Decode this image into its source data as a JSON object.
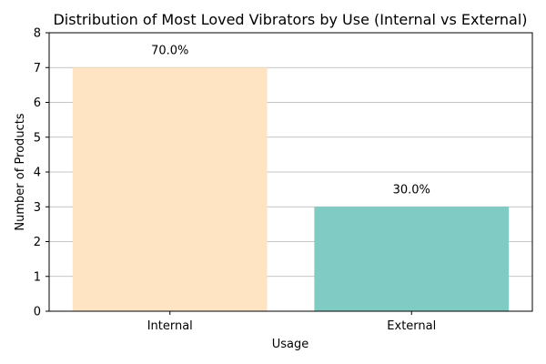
{
  "chart_data": {
    "type": "bar",
    "title": "Distribution of Most Loved Vibrators by Use (Internal vs External)",
    "xlabel": "Usage",
    "ylabel": "Number of Products",
    "categories": [
      "Internal",
      "External"
    ],
    "values": [
      7,
      3
    ],
    "data_labels": [
      "70.0%",
      "30.0%"
    ],
    "colors": [
      "#ffe4c4",
      "#80cbc4"
    ],
    "ylim": [
      0,
      8
    ],
    "yticks": [
      0,
      1,
      2,
      3,
      4,
      5,
      6,
      7,
      8
    ],
    "grid": "y"
  }
}
